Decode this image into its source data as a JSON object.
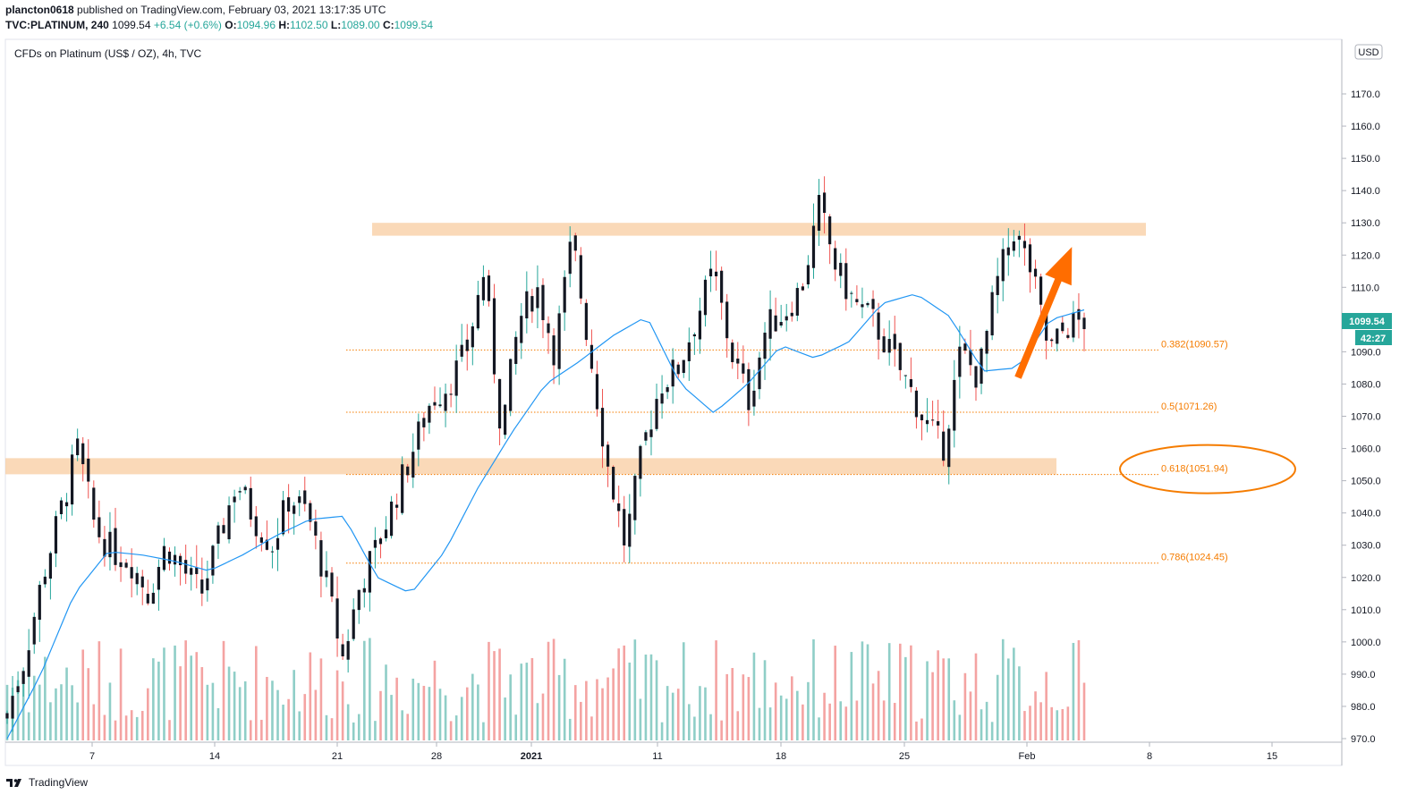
{
  "header": {
    "publisher": "plancton0618",
    "published_text": "published on TradingView.com, February 03, 2021 13:17:35 UTC",
    "symbol": "TVC:PLATINUM, 240",
    "last": "1099.54",
    "change": "+6.54 (+0.6%)",
    "o_label": "O:",
    "o_value": "1094.96",
    "h_label": "H:",
    "h_value": "1102.50",
    "l_label": "L:",
    "l_value": "1089.00",
    "c_label": "C:",
    "c_value": "1099.54"
  },
  "legend_title": "CFDs on Platinum (US$ / OZ), 4h, TVC",
  "currency_badge": "USD",
  "price_badge": "1099.54",
  "countdown_badge": "42:27",
  "footer_brand": "TradingView",
  "colors": {
    "up": "#26a69a",
    "down": "#ef5350",
    "candle_body": "#131722",
    "ma_line": "#2196f3",
    "zone": "#f8c99a",
    "fib": "#f57c00",
    "arrow": "#ff6d00",
    "vol_up": "#8fcec7",
    "vol_down": "#f4a3a2"
  },
  "chart_data": {
    "type": "candlestick",
    "title": "CFDs on Platinum (US$ / OZ), 4h, TVC",
    "interval": "4h",
    "y_axis": {
      "unit": "USD",
      "ylim": [
        970,
        1180
      ],
      "ticks": [
        970,
        980,
        990,
        1000,
        1010,
        1020,
        1030,
        1040,
        1050,
        1060,
        1070,
        1080,
        1090,
        1100,
        1110,
        1120,
        1130,
        1140,
        1150,
        1160,
        1170
      ]
    },
    "x_axis": {
      "ticks": [
        "7",
        "14",
        "21",
        "28",
        "2021",
        "11",
        "18",
        "25",
        "Feb",
        "8",
        "15"
      ]
    },
    "last_price": 1099.54,
    "resistance_zone": [
      1126,
      1130
    ],
    "support_zone": [
      1052,
      1057
    ],
    "fib_levels": [
      {
        "ratio": "0.382",
        "price": 1090.57,
        "label": "0.382(1090.57)"
      },
      {
        "ratio": "0.5",
        "price": 1071.26,
        "label": "0.5(1071.26)"
      },
      {
        "ratio": "0.618",
        "price": 1051.94,
        "label": "0.618(1051.94)"
      },
      {
        "ratio": "0.786",
        "price": 1024.45,
        "label": "0.786(1024.45)"
      }
    ],
    "arrow": {
      "from_price": 1082,
      "to_price": 1121,
      "direction": "up"
    },
    "ellipse_highlight": "0.618(1051.94)",
    "series": [
      {
        "kind": "price",
        "key_points_close": [
          978,
          995,
          1020,
          1040,
          1060,
          1035,
          1028,
          1025,
          1015,
          1030,
          1022,
          1015,
          1032,
          1050,
          1038,
          1030,
          1045,
          1040,
          1020,
          995,
          1018,
          1030,
          1045,
          1060,
          1075,
          1080,
          1090,
          1115,
          1065,
          1100,
          1110,
          1090,
          1125,
          1090,
          1055,
          1030,
          1060,
          1080,
          1085,
          1100,
          1115,
          1090,
          1075,
          1098,
          1102,
          1110,
          1135,
          1115,
          1105,
          1100,
          1090,
          1080,
          1068,
          1060,
          1090,
          1082,
          1110,
          1128,
          1115,
          1090,
          1098,
          1099.54
        ]
      },
      {
        "kind": "moving_average",
        "key_points": [
          970,
          990,
          1015,
          1028,
          1027,
          1025,
          1022,
          1027,
          1033,
          1038,
          1039,
          1020,
          1015,
          1028,
          1048,
          1065,
          1080,
          1087,
          1095,
          1101,
          1080,
          1071,
          1080,
          1092,
          1088,
          1093,
          1105,
          1108,
          1101,
          1084,
          1085,
          1100,
          1103
        ]
      }
    ]
  }
}
